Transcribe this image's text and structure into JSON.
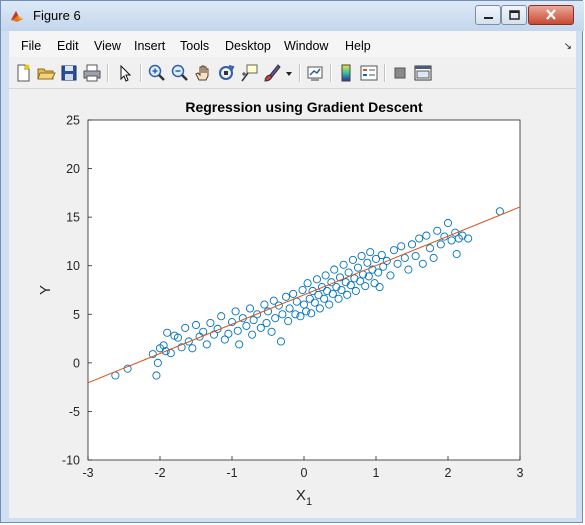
{
  "window": {
    "title": "Figure 6"
  },
  "menu": {
    "items": [
      "File",
      "Edit",
      "View",
      "Insert",
      "Tools",
      "Desktop",
      "Window",
      "Help"
    ]
  },
  "icons": {
    "app": "matlab-figure-icon",
    "toolbar": [
      "new-figure-icon",
      "open-file-icon",
      "save-icon",
      "print-icon",
      "edit-plot-arrow-icon",
      "zoom-in-icon",
      "zoom-out-icon",
      "pan-hand-icon",
      "rotate-3d-icon",
      "data-cursor-icon",
      "brush-icon",
      "brush-dropdown-icon",
      "link-plot-icon",
      "insert-colorbar-icon",
      "insert-legend-icon",
      "hide-plot-tools-icon",
      "show-plot-tools-icon"
    ]
  },
  "colors": {
    "scatter": "#0072bd",
    "fit_line": "#d95319"
  },
  "chart_data": {
    "type": "scatter",
    "title": "Regression using Gradient Descent",
    "xlabel": "X",
    "xlabel_subscript": "1",
    "ylabel": "Y",
    "xlim": [
      -3,
      3
    ],
    "ylim": [
      -10,
      25
    ],
    "xticks": [
      "-3",
      "-2",
      "-1",
      "0",
      "1",
      "2",
      "3"
    ],
    "yticks": [
      "-10",
      "-5",
      "0",
      "5",
      "10",
      "15",
      "20",
      "25"
    ],
    "grid": false,
    "series": [
      {
        "kind": "markers",
        "marker": "circle",
        "points": [
          [
            -2.62,
            -1.3
          ],
          [
            -2.45,
            -0.6
          ],
          [
            -2.1,
            0.9
          ],
          [
            -2.05,
            -1.3
          ],
          [
            -2.03,
            0.0
          ],
          [
            -2.0,
            1.5
          ],
          [
            -1.95,
            1.8
          ],
          [
            -1.92,
            1.2
          ],
          [
            -1.9,
            3.1
          ],
          [
            -1.85,
            1.0
          ],
          [
            -1.8,
            2.8
          ],
          [
            -1.75,
            2.6
          ],
          [
            -1.7,
            1.6
          ],
          [
            -1.65,
            3.6
          ],
          [
            -1.6,
            2.2
          ],
          [
            -1.55,
            1.5
          ],
          [
            -1.5,
            3.9
          ],
          [
            -1.45,
            2.7
          ],
          [
            -1.4,
            3.2
          ],
          [
            -1.35,
            1.9
          ],
          [
            -1.3,
            4.1
          ],
          [
            -1.25,
            2.9
          ],
          [
            -1.2,
            3.5
          ],
          [
            -1.15,
            4.8
          ],
          [
            -1.1,
            2.4
          ],
          [
            -1.05,
            3.0
          ],
          [
            -1.0,
            4.2
          ],
          [
            -0.95,
            5.3
          ],
          [
            -0.92,
            3.3
          ],
          [
            -0.9,
            1.9
          ],
          [
            -0.85,
            4.6
          ],
          [
            -0.8,
            3.8
          ],
          [
            -0.75,
            5.6
          ],
          [
            -0.72,
            2.9
          ],
          [
            -0.7,
            4.4
          ],
          [
            -0.65,
            5.0
          ],
          [
            -0.6,
            3.6
          ],
          [
            -0.55,
            6.0
          ],
          [
            -0.52,
            4.1
          ],
          [
            -0.5,
            5.3
          ],
          [
            -0.45,
            3.2
          ],
          [
            -0.42,
            6.4
          ],
          [
            -0.4,
            4.6
          ],
          [
            -0.35,
            5.9
          ],
          [
            -0.32,
            2.2
          ],
          [
            -0.3,
            5.0
          ],
          [
            -0.25,
            6.8
          ],
          [
            -0.22,
            4.3
          ],
          [
            -0.2,
            5.6
          ],
          [
            -0.15,
            7.1
          ],
          [
            -0.12,
            5.0
          ],
          [
            -0.1,
            6.3
          ],
          [
            -0.05,
            4.8
          ],
          [
            -0.02,
            7.5
          ],
          [
            0.0,
            6.0
          ],
          [
            0.03,
            5.3
          ],
          [
            0.05,
            8.2
          ],
          [
            0.08,
            6.6
          ],
          [
            0.1,
            5.1
          ],
          [
            0.12,
            7.4
          ],
          [
            0.15,
            6.2
          ],
          [
            0.18,
            8.6
          ],
          [
            0.2,
            7.0
          ],
          [
            0.22,
            5.6
          ],
          [
            0.25,
            7.8
          ],
          [
            0.28,
            6.6
          ],
          [
            0.3,
            9.0
          ],
          [
            0.32,
            7.4
          ],
          [
            0.35,
            6.0
          ],
          [
            0.38,
            8.3
          ],
          [
            0.4,
            7.1
          ],
          [
            0.42,
            9.6
          ],
          [
            0.45,
            7.8
          ],
          [
            0.48,
            6.6
          ],
          [
            0.5,
            8.8
          ],
          [
            0.52,
            7.5
          ],
          [
            0.55,
            10.1
          ],
          [
            0.58,
            8.3
          ],
          [
            0.6,
            7.0
          ],
          [
            0.62,
            9.3
          ],
          [
            0.65,
            8.0
          ],
          [
            0.68,
            10.6
          ],
          [
            0.7,
            8.7
          ],
          [
            0.72,
            7.4
          ],
          [
            0.75,
            9.8
          ],
          [
            0.78,
            8.4
          ],
          [
            0.8,
            11.0
          ],
          [
            0.82,
            9.1
          ],
          [
            0.85,
            7.9
          ],
          [
            0.88,
            10.3
          ],
          [
            0.9,
            8.9
          ],
          [
            0.92,
            11.4
          ],
          [
            0.95,
            9.6
          ],
          [
            0.98,
            8.2
          ],
          [
            1.0,
            10.7
          ],
          [
            1.03,
            9.3
          ],
          [
            1.05,
            7.8
          ],
          [
            1.08,
            11.1
          ],
          [
            1.1,
            9.9
          ],
          [
            1.15,
            10.5
          ],
          [
            1.2,
            9.0
          ],
          [
            1.25,
            11.6
          ],
          [
            1.3,
            10.2
          ],
          [
            1.35,
            12.0
          ],
          [
            1.4,
            10.8
          ],
          [
            1.45,
            9.6
          ],
          [
            1.5,
            12.2
          ],
          [
            1.55,
            11.0
          ],
          [
            1.6,
            12.8
          ],
          [
            1.65,
            10.2
          ],
          [
            1.7,
            13.1
          ],
          [
            1.75,
            11.8
          ],
          [
            1.8,
            10.8
          ],
          [
            1.85,
            13.6
          ],
          [
            1.9,
            12.2
          ],
          [
            1.95,
            13.0
          ],
          [
            2.0,
            14.4
          ],
          [
            2.05,
            12.6
          ],
          [
            2.1,
            13.4
          ],
          [
            2.12,
            11.2
          ],
          [
            2.15,
            12.8
          ],
          [
            2.2,
            13.1
          ],
          [
            2.28,
            12.8
          ],
          [
            2.72,
            15.6
          ]
        ]
      },
      {
        "kind": "line",
        "points": [
          [
            -3,
            -2.05
          ],
          [
            3,
            16.05
          ]
        ]
      }
    ]
  }
}
